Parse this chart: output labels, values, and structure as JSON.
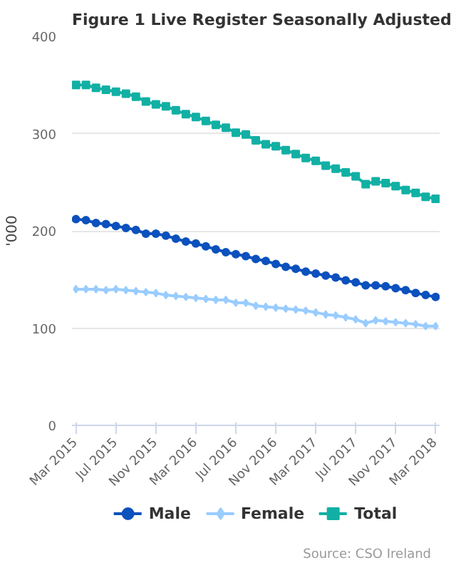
{
  "chart_data": {
    "type": "line",
    "title": "Figure 1 Live Register Seasonally Adjusted",
    "ylabel": "'000",
    "categories": [
      "Mar 2015",
      null,
      null,
      null,
      "Jul 2015",
      null,
      null,
      null,
      "Nov 2015",
      null,
      null,
      null,
      "Mar 2016",
      null,
      null,
      null,
      "Jul 2016",
      null,
      null,
      null,
      "Nov 2016",
      null,
      null,
      null,
      "Mar 2017",
      null,
      null,
      null,
      "Jul 2017",
      null,
      null,
      null,
      "Nov 2017",
      null,
      null,
      null,
      "Mar 2018"
    ],
    "series": [
      {
        "name": "Male",
        "color": "#0c51bd",
        "marker": "circle",
        "values": [
          212,
          211,
          208,
          207,
          205,
          203,
          201,
          197,
          197,
          195,
          192,
          189,
          187,
          184,
          181,
          178,
          176,
          174,
          171,
          169,
          166,
          163,
          161,
          158,
          156,
          154,
          152,
          149,
          147,
          144,
          144,
          143,
          141,
          139,
          136,
          134,
          132
        ]
      },
      {
        "name": "Female",
        "color": "#99ccff",
        "marker": "diamond",
        "values": [
          140,
          140,
          140,
          139,
          140,
          139,
          138,
          137,
          136,
          134,
          133,
          132,
          131,
          130,
          129,
          129,
          126,
          126,
          123,
          122,
          121,
          120,
          119,
          118,
          116,
          114,
          113,
          111,
          109,
          105,
          108,
          107,
          106,
          105,
          104,
          102,
          102
        ]
      },
      {
        "name": "Total",
        "color": "#12b0a4",
        "marker": "square",
        "values": [
          350,
          350,
          347,
          345,
          343,
          341,
          338,
          333,
          330,
          328,
          324,
          320,
          317,
          313,
          309,
          306,
          301,
          299,
          293,
          289,
          287,
          283,
          279,
          275,
          272,
          267,
          264,
          260,
          256,
          248,
          251,
          249,
          246,
          242,
          239,
          235,
          233
        ]
      }
    ],
    "ylim": [
      0,
      400
    ],
    "yticks": [
      0,
      100,
      200,
      300,
      400
    ],
    "grid": "y",
    "legend": "bottom",
    "line_style": "solid",
    "annotations": [
      "Source: CSO Ireland"
    ]
  }
}
